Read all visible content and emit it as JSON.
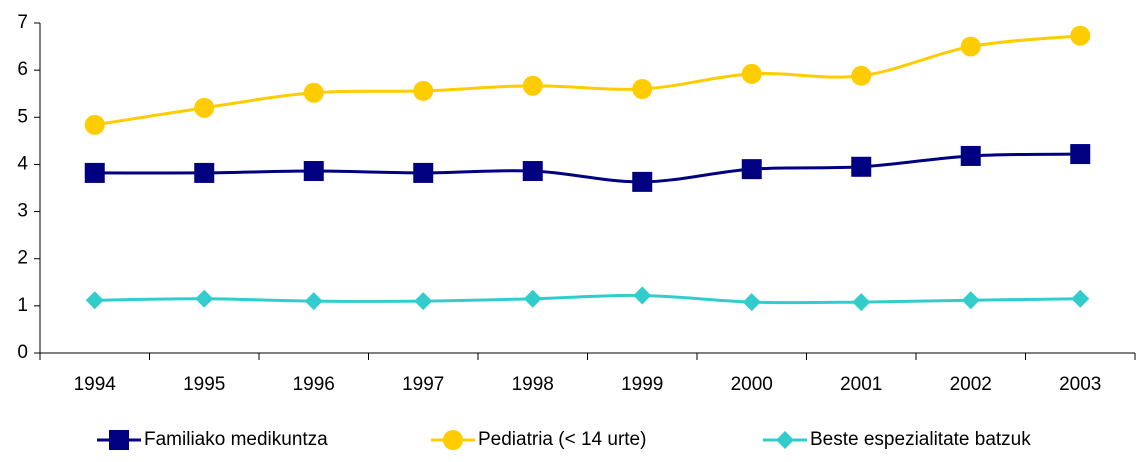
{
  "chart_data": {
    "type": "line",
    "categories": [
      "1994",
      "1995",
      "1996",
      "1997",
      "1998",
      "1999",
      "2000",
      "2001",
      "2002",
      "2003"
    ],
    "series": [
      {
        "name": "Familiako medikuntza",
        "color": "#000080",
        "marker": "square",
        "values": [
          3.82,
          3.82,
          3.86,
          3.82,
          3.86,
          3.63,
          3.9,
          3.95,
          4.18,
          4.22
        ]
      },
      {
        "name": "Pediatria (< 14 urte)",
        "color": "#FFCC00",
        "marker": "circle",
        "values": [
          4.84,
          5.2,
          5.52,
          5.56,
          5.67,
          5.6,
          5.92,
          5.88,
          6.5,
          6.73
        ]
      },
      {
        "name": "Beste espezialitate batzuk",
        "color": "#33CCCC",
        "marker": "diamond",
        "values": [
          1.12,
          1.15,
          1.1,
          1.1,
          1.15,
          1.22,
          1.08,
          1.08,
          1.12,
          1.15
        ]
      }
    ],
    "ylim": [
      0,
      7
    ],
    "yticks": [
      0,
      1,
      2,
      3,
      4,
      5,
      6,
      7
    ],
    "smooth": true,
    "grid": false,
    "legend": "bottom"
  }
}
